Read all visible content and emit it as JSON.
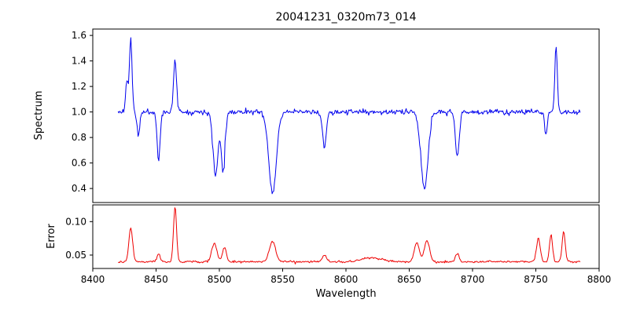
{
  "chart_data": {
    "type": "line",
    "title": "20041231_0320m73_014",
    "xlabel": "Wavelength",
    "xlim": [
      8400,
      8800
    ],
    "x_ticks": [
      {
        "value": 8400,
        "label": "8400"
      },
      {
        "value": 8450,
        "label": "8450"
      },
      {
        "value": 8500,
        "label": "8500"
      },
      {
        "value": 8550,
        "label": "8550"
      },
      {
        "value": 8600,
        "label": "8600"
      },
      {
        "value": 8650,
        "label": "8650"
      },
      {
        "value": 8700,
        "label": "8700"
      },
      {
        "value": 8750,
        "label": "8750"
      },
      {
        "value": 8800,
        "label": "8800"
      }
    ],
    "grid": false,
    "legend": "none",
    "subplots": [
      {
        "name": "spectrum",
        "ylabel": "Spectrum",
        "color": "#0000ee",
        "ylim": [
          0.29,
          1.65
        ],
        "y_ticks": [
          {
            "value": 1.6,
            "label": "1.6"
          },
          {
            "value": 1.4,
            "label": "1.4"
          },
          {
            "value": 1.2,
            "label": "1.2"
          },
          {
            "value": 1.0,
            "label": "1.0"
          },
          {
            "value": 0.8,
            "label": "0.8"
          },
          {
            "value": 0.6,
            "label": "0.6"
          },
          {
            "value": 0.4,
            "label": "0.4"
          }
        ],
        "series": {
          "x_start": 8420,
          "x_end": 8785,
          "n_points": 580,
          "baseline": 1.0,
          "noise": 0.03,
          "spike_prob": 0.05,
          "spike_mult": 2.2,
          "seed": 11,
          "features": [
            {
              "x": 8427,
              "w": 1.0,
              "amp": 0.25
            },
            {
              "x": 8430,
              "w": 1.0,
              "amp": 0.58
            },
            {
              "x": 8436,
              "w": 1.0,
              "amp": -0.2
            },
            {
              "x": 8452,
              "w": 1.2,
              "amp": -0.38
            },
            {
              "x": 8465,
              "w": 1.2,
              "amp": 0.4
            },
            {
              "x": 8497,
              "w": 2.0,
              "amp": -0.5
            },
            {
              "x": 8503,
              "w": 1.5,
              "amp": -0.45
            },
            {
              "x": 8542,
              "w": 3.0,
              "amp": -0.63
            },
            {
              "x": 8583,
              "w": 1.5,
              "amp": -0.28
            },
            {
              "x": 8662,
              "w": 2.8,
              "amp": -0.6
            },
            {
              "x": 8688,
              "w": 1.5,
              "amp": -0.35
            },
            {
              "x": 8758,
              "w": 1.0,
              "amp": -0.18
            },
            {
              "x": 8766,
              "w": 1.0,
              "amp": 0.52
            }
          ]
        }
      },
      {
        "name": "error",
        "ylabel": "Error",
        "color": "#ee0000",
        "ylim": [
          0.03,
          0.125
        ],
        "y_ticks": [
          {
            "value": 0.1,
            "label": "0.10"
          },
          {
            "value": 0.05,
            "label": "0.05"
          }
        ],
        "series": {
          "x_start": 8420,
          "x_end": 8785,
          "n_points": 580,
          "baseline": 0.04,
          "noise": 0.0022,
          "spike_prob": 0.05,
          "spike_mult": 2.0,
          "seed": 29,
          "features": [
            {
              "x": 8430,
              "w": 1.5,
              "amp": 0.05
            },
            {
              "x": 8452,
              "w": 1.2,
              "amp": 0.012
            },
            {
              "x": 8465,
              "w": 1.2,
              "amp": 0.082
            },
            {
              "x": 8496,
              "w": 2.0,
              "amp": 0.028
            },
            {
              "x": 8504,
              "w": 1.5,
              "amp": 0.022
            },
            {
              "x": 8542,
              "w": 2.5,
              "amp": 0.03
            },
            {
              "x": 8583,
              "w": 1.5,
              "amp": 0.01
            },
            {
              "x": 8620,
              "w": 8.0,
              "amp": 0.006
            },
            {
              "x": 8656,
              "w": 2.0,
              "amp": 0.028
            },
            {
              "x": 8664,
              "w": 2.0,
              "amp": 0.032
            },
            {
              "x": 8688,
              "w": 1.5,
              "amp": 0.012
            },
            {
              "x": 8752,
              "w": 1.5,
              "amp": 0.035
            },
            {
              "x": 8762,
              "w": 1.2,
              "amp": 0.04
            },
            {
              "x": 8772,
              "w": 1.2,
              "amp": 0.045
            }
          ]
        }
      }
    ]
  }
}
